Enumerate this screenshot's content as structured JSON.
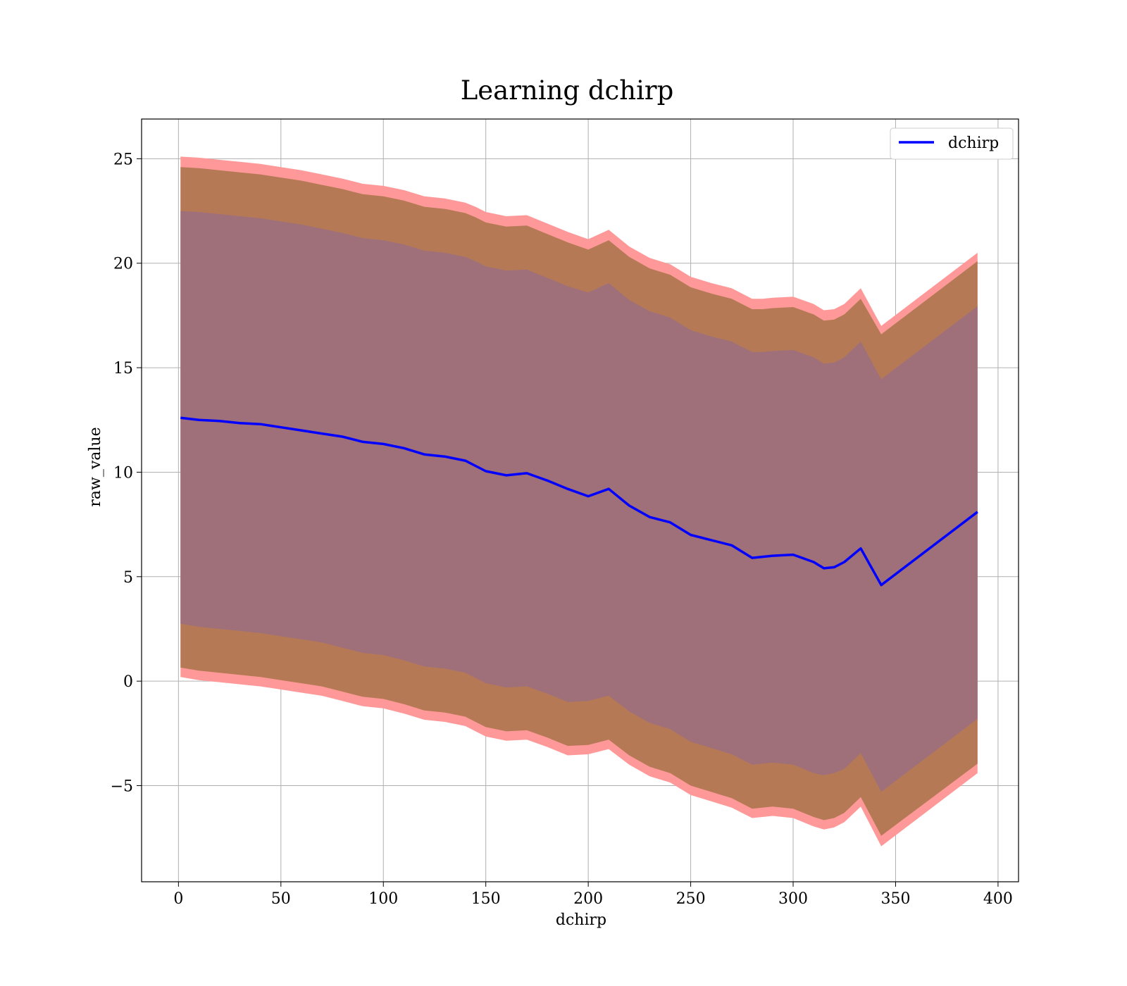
{
  "chart_data": {
    "type": "line",
    "title": "Learning dchirp",
    "xlabel": "dchirp",
    "ylabel": "raw_value",
    "xlim": [
      -18,
      410
    ],
    "ylim": [
      -9.6,
      26.9
    ],
    "xticks": [
      0,
      50,
      100,
      150,
      200,
      250,
      300,
      350,
      400
    ],
    "yticks": [
      -5,
      0,
      5,
      10,
      15,
      20,
      25
    ],
    "ytick_labels": [
      "−5",
      "0",
      "5",
      "10",
      "15",
      "20",
      "25"
    ],
    "grid": true,
    "legend": {
      "placement": "top-right",
      "entries": [
        "dchirp"
      ]
    },
    "series": [
      {
        "name": "dchirp",
        "kind": "line",
        "color": "#0000ff",
        "x": [
          1,
          10,
          20,
          30,
          40,
          50,
          60,
          70,
          80,
          90,
          100,
          110,
          120,
          130,
          140,
          145,
          150,
          160,
          170,
          180,
          190,
          200,
          210,
          220,
          230,
          240,
          250,
          260,
          270,
          280,
          285,
          290,
          300,
          310,
          315,
          320,
          325,
          333,
          343,
          390
        ],
        "y": [
          12.6,
          12.5,
          12.45,
          12.35,
          12.3,
          12.15,
          12.0,
          11.85,
          11.7,
          11.45,
          11.35,
          11.15,
          10.85,
          10.75,
          10.55,
          10.3,
          10.05,
          9.85,
          9.95,
          9.6,
          9.2,
          8.85,
          9.2,
          8.4,
          7.85,
          7.6,
          7.0,
          6.75,
          6.5,
          5.9,
          5.95,
          6.0,
          6.05,
          5.7,
          5.4,
          5.45,
          5.7,
          6.35,
          4.6,
          8.1
        ]
      }
    ],
    "bands": [
      {
        "kind": "band",
        "color": "#ff9999",
        "x": [
          1,
          10,
          20,
          30,
          40,
          50,
          60,
          70,
          80,
          90,
          100,
          110,
          120,
          130,
          140,
          145,
          150,
          160,
          170,
          180,
          190,
          200,
          210,
          220,
          230,
          240,
          250,
          260,
          270,
          280,
          285,
          290,
          300,
          310,
          315,
          320,
          325,
          333,
          343,
          390
        ],
        "upper": [
          25.1,
          25.05,
          24.95,
          24.85,
          24.75,
          24.6,
          24.45,
          24.25,
          24.05,
          23.8,
          23.7,
          23.5,
          23.2,
          23.1,
          22.9,
          22.7,
          22.45,
          22.25,
          22.3,
          21.9,
          21.5,
          21.15,
          21.6,
          20.8,
          20.25,
          19.95,
          19.35,
          19.05,
          18.8,
          18.3,
          18.3,
          18.35,
          18.4,
          18.05,
          17.75,
          17.8,
          18.05,
          18.8,
          17.0,
          20.5
        ],
        "lower": [
          0.2,
          0.05,
          -0.05,
          -0.15,
          -0.25,
          -0.4,
          -0.55,
          -0.7,
          -0.95,
          -1.2,
          -1.3,
          -1.55,
          -1.85,
          -1.95,
          -2.15,
          -2.4,
          -2.65,
          -2.85,
          -2.8,
          -3.15,
          -3.55,
          -3.5,
          -3.25,
          -4.0,
          -4.55,
          -4.85,
          -5.45,
          -5.75,
          -6.05,
          -6.55,
          -6.5,
          -6.45,
          -6.55,
          -6.95,
          -7.1,
          -7.0,
          -6.75,
          -6.0,
          -7.9,
          -4.4
        ]
      },
      {
        "kind": "band",
        "color": "#b57a55",
        "x": [
          1,
          10,
          20,
          30,
          40,
          50,
          60,
          70,
          80,
          90,
          100,
          110,
          120,
          130,
          140,
          145,
          150,
          160,
          170,
          180,
          190,
          200,
          210,
          220,
          230,
          240,
          250,
          260,
          270,
          280,
          285,
          290,
          300,
          310,
          315,
          320,
          325,
          333,
          343,
          390
        ],
        "upper": [
          24.6,
          24.55,
          24.45,
          24.35,
          24.25,
          24.1,
          23.95,
          23.75,
          23.55,
          23.3,
          23.2,
          23.0,
          22.7,
          22.6,
          22.4,
          22.2,
          21.95,
          21.75,
          21.8,
          21.4,
          21.0,
          20.65,
          21.1,
          20.3,
          19.75,
          19.45,
          18.85,
          18.55,
          18.3,
          17.8,
          17.8,
          17.85,
          17.9,
          17.55,
          17.25,
          17.3,
          17.55,
          18.3,
          16.6,
          20.1
        ],
        "lower": [
          0.65,
          0.5,
          0.4,
          0.3,
          0.2,
          0.05,
          -0.1,
          -0.25,
          -0.5,
          -0.75,
          -0.85,
          -1.1,
          -1.4,
          -1.5,
          -1.7,
          -1.95,
          -2.2,
          -2.4,
          -2.35,
          -2.7,
          -3.1,
          -3.05,
          -2.8,
          -3.55,
          -4.1,
          -4.4,
          -5.0,
          -5.3,
          -5.6,
          -6.1,
          -6.05,
          -6.0,
          -6.1,
          -6.5,
          -6.65,
          -6.55,
          -6.3,
          -5.55,
          -7.4,
          -3.95
        ]
      },
      {
        "kind": "band",
        "color": "#a0707a",
        "x": [
          1,
          10,
          20,
          30,
          40,
          50,
          60,
          70,
          80,
          90,
          100,
          110,
          120,
          130,
          140,
          145,
          150,
          160,
          170,
          180,
          190,
          200,
          210,
          220,
          230,
          240,
          250,
          260,
          270,
          280,
          285,
          290,
          300,
          310,
          315,
          320,
          325,
          333,
          343,
          390
        ],
        "upper": [
          22.5,
          22.45,
          22.35,
          22.25,
          22.15,
          22.0,
          21.85,
          21.65,
          21.45,
          21.2,
          21.1,
          20.9,
          20.6,
          20.5,
          20.3,
          20.1,
          19.85,
          19.65,
          19.7,
          19.3,
          18.9,
          18.6,
          19.05,
          18.25,
          17.7,
          17.4,
          16.8,
          16.5,
          16.25,
          15.75,
          15.75,
          15.8,
          15.85,
          15.5,
          15.2,
          15.25,
          15.5,
          16.25,
          14.45,
          17.95
        ],
        "lower": [
          2.75,
          2.6,
          2.5,
          2.4,
          2.3,
          2.15,
          2.0,
          1.85,
          1.6,
          1.35,
          1.25,
          1.0,
          0.7,
          0.6,
          0.4,
          0.15,
          -0.1,
          -0.3,
          -0.25,
          -0.6,
          -1.0,
          -0.95,
          -0.7,
          -1.45,
          -2.0,
          -2.3,
          -2.9,
          -3.2,
          -3.5,
          -4.0,
          -3.95,
          -3.9,
          -4.0,
          -4.4,
          -4.5,
          -4.4,
          -4.2,
          -3.45,
          -5.3,
          -1.8
        ]
      }
    ]
  }
}
